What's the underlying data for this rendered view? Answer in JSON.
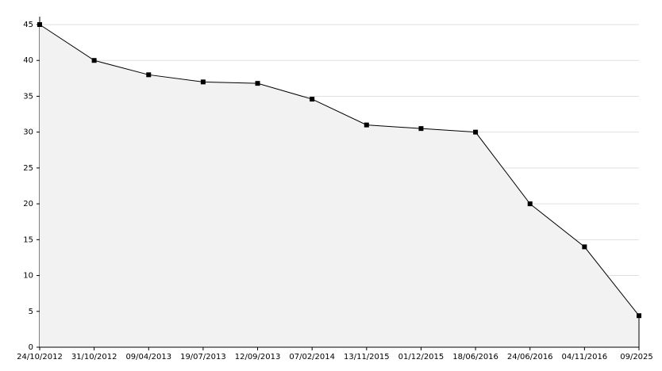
{
  "chart_data": {
    "type": "area",
    "categories": [
      "24/10/2012",
      "31/10/2012",
      "09/04/2013",
      "19/07/2013",
      "12/09/2013",
      "07/02/2014",
      "13/11/2015",
      "01/12/2015",
      "18/06/2016",
      "24/06/2016",
      "04/11/2016",
      "09/2025"
    ],
    "values": [
      45,
      40,
      38,
      37,
      36.8,
      34.6,
      31,
      30.5,
      30,
      20,
      14,
      4.4
    ],
    "color": "#000000",
    "fill": "#f2f2f2",
    "ylim": [
      0,
      45
    ],
    "yticks": [
      0,
      5,
      10,
      15,
      20,
      25,
      30,
      35,
      40,
      45
    ],
    "grid": true
  }
}
